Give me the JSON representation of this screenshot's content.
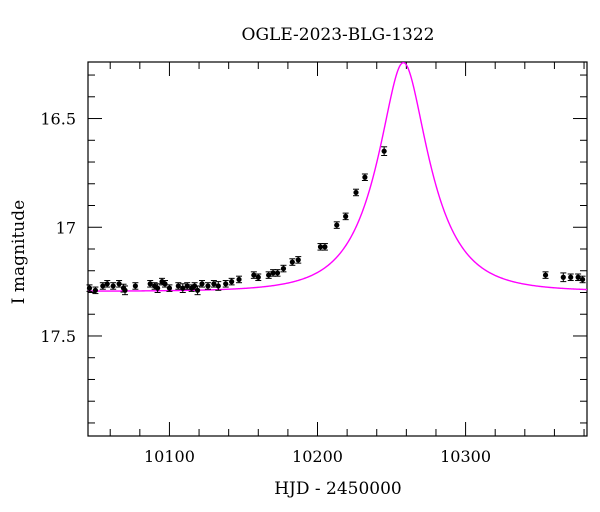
{
  "chart_data": {
    "type": "scatter",
    "title": "OGLE-2023-BLG-1322",
    "xlabel": "HJD - 2450000",
    "ylabel": "I magnitude",
    "xlim": [
      10045,
      10382
    ],
    "ylim": [
      17.96,
      16.24
    ],
    "y_inverted": true,
    "x_major_ticks": [
      10100,
      10200,
      10300
    ],
    "x_minor_step": 20,
    "y_major_ticks": [
      16.5,
      17,
      17.5
    ],
    "y_major_labels": [
      "16.5",
      "17",
      "17.5"
    ],
    "y_minor_step": 0.1,
    "grid": false,
    "colors": {
      "model": "#ff00ff",
      "points": "#000000"
    },
    "model": {
      "t0": 10258,
      "tE": 33.3,
      "u0": 0.402,
      "I_base": 17.295
    },
    "series": [
      {
        "points": [
          [
            10046,
            17.28,
            0.015
          ],
          [
            10050,
            17.29,
            0.015
          ],
          [
            10055,
            17.27,
            0.015
          ],
          [
            10058,
            17.26,
            0.015
          ],
          [
            10062,
            17.27,
            0.015
          ],
          [
            10066,
            17.26,
            0.015
          ],
          [
            10069,
            17.28,
            0.018
          ],
          [
            10070,
            17.29,
            0.02
          ],
          [
            10077,
            17.27,
            0.015
          ],
          [
            10087,
            17.26,
            0.015
          ],
          [
            10090,
            17.27,
            0.015
          ],
          [
            10092,
            17.28,
            0.02
          ],
          [
            10095,
            17.25,
            0.015
          ],
          [
            10097,
            17.26,
            0.015
          ],
          [
            10100,
            17.28,
            0.015
          ],
          [
            10106,
            17.27,
            0.015
          ],
          [
            10109,
            17.28,
            0.02
          ],
          [
            10112,
            17.27,
            0.015
          ],
          [
            10115,
            17.28,
            0.015
          ],
          [
            10117,
            17.27,
            0.015
          ],
          [
            10119,
            17.29,
            0.02
          ],
          [
            10122,
            17.26,
            0.015
          ],
          [
            10126,
            17.27,
            0.015
          ],
          [
            10130,
            17.26,
            0.015
          ],
          [
            10133,
            17.27,
            0.02
          ],
          [
            10138,
            17.26,
            0.015
          ],
          [
            10142,
            17.25,
            0.015
          ],
          [
            10147,
            17.24,
            0.015
          ],
          [
            10157,
            17.22,
            0.015
          ],
          [
            10160,
            17.23,
            0.015
          ],
          [
            10167,
            17.22,
            0.015
          ],
          [
            10170,
            17.21,
            0.015
          ],
          [
            10173,
            17.21,
            0.015
          ],
          [
            10177,
            17.19,
            0.015
          ],
          [
            10183,
            17.16,
            0.015
          ],
          [
            10187,
            17.15,
            0.015
          ],
          [
            10202,
            17.09,
            0.015
          ],
          [
            10205,
            17.09,
            0.015
          ],
          [
            10213,
            16.99,
            0.015
          ],
          [
            10219,
            16.95,
            0.015
          ],
          [
            10226,
            16.84,
            0.015
          ],
          [
            10232,
            16.77,
            0.015
          ],
          [
            10245,
            16.65,
            0.02
          ],
          [
            10354,
            17.22,
            0.015
          ],
          [
            10366,
            17.23,
            0.02
          ],
          [
            10371,
            17.23,
            0.015
          ],
          [
            10376,
            17.23,
            0.015
          ],
          [
            10379,
            17.24,
            0.015
          ]
        ]
      }
    ]
  }
}
